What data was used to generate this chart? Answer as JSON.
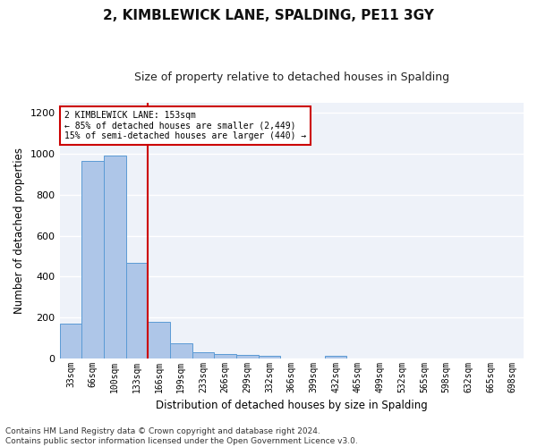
{
  "title": "2, KIMBLEWICK LANE, SPALDING, PE11 3GY",
  "subtitle": "Size of property relative to detached houses in Spalding",
  "xlabel": "Distribution of detached houses by size in Spalding",
  "ylabel": "Number of detached properties",
  "categories": [
    "33sqm",
    "66sqm",
    "100sqm",
    "133sqm",
    "166sqm",
    "199sqm",
    "233sqm",
    "266sqm",
    "299sqm",
    "332sqm",
    "366sqm",
    "399sqm",
    "432sqm",
    "465sqm",
    "499sqm",
    "532sqm",
    "565sqm",
    "598sqm",
    "632sqm",
    "665sqm",
    "698sqm"
  ],
  "values": [
    170,
    965,
    990,
    465,
    180,
    75,
    27,
    20,
    17,
    10,
    0,
    0,
    13,
    0,
    0,
    0,
    0,
    0,
    0,
    0,
    0
  ],
  "bar_color": "#aec6e8",
  "bar_edge_color": "#5b9bd5",
  "red_line_x": 3.5,
  "annotation_line1": "2 KIMBLEWICK LANE: 153sqm",
  "annotation_line2": "← 85% of detached houses are smaller (2,449)",
  "annotation_line3": "15% of semi-detached houses are larger (440) →",
  "annotation_box_color": "#ffffff",
  "annotation_border_color": "#cc0000",
  "red_line_color": "#cc0000",
  "footer": "Contains HM Land Registry data © Crown copyright and database right 2024.\nContains public sector information licensed under the Open Government Licence v3.0.",
  "ylim": [
    0,
    1250
  ],
  "yticks": [
    0,
    200,
    400,
    600,
    800,
    1000,
    1200
  ],
  "background_color": "#eef2f9",
  "fig_background_color": "#ffffff",
  "grid_color": "#ffffff",
  "title_fontsize": 11,
  "subtitle_fontsize": 9,
  "axis_label_fontsize": 8.5,
  "tick_fontsize": 7,
  "footer_fontsize": 6.5
}
